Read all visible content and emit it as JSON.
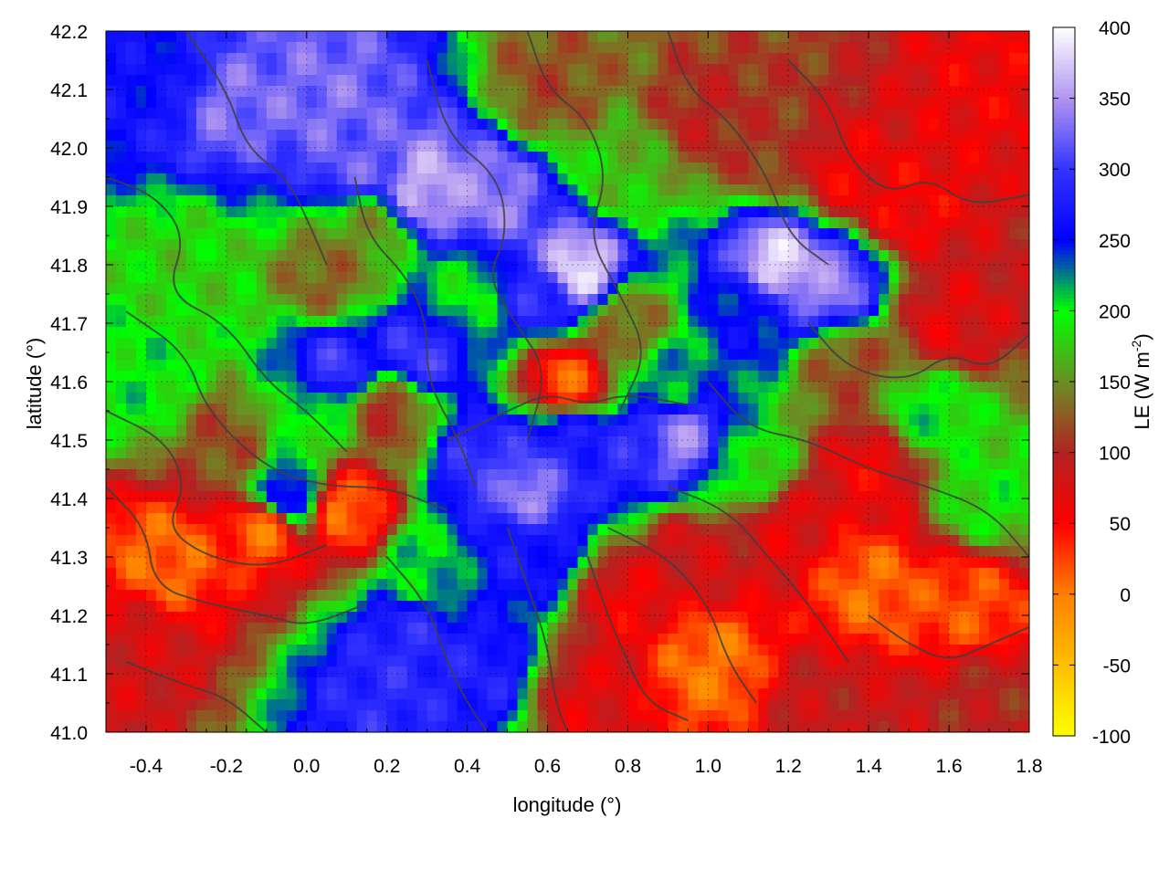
{
  "chart_data": {
    "type": "heatmap",
    "title": "",
    "xlabel": "longitude (°)",
    "ylabel": "latitude (°)",
    "xlim": [
      -0.5,
      1.8
    ],
    "ylim": [
      41.0,
      42.2
    ],
    "x_ticks": [
      -0.4,
      -0.2,
      0.0,
      0.2,
      0.4,
      0.6,
      0.8,
      1.0,
      1.2,
      1.4,
      1.6,
      1.8
    ],
    "x_tick_labels": [
      "-0.4",
      "-0.2",
      "0.0",
      "0.2",
      "0.4",
      "0.6",
      "0.8",
      "1.0",
      "1.2",
      "1.4",
      "1.6",
      "1.8"
    ],
    "y_ticks": [
      41.0,
      41.1,
      41.2,
      41.3,
      41.4,
      41.5,
      41.6,
      41.7,
      41.8,
      41.9,
      42.0,
      42.1,
      42.2
    ],
    "y_tick_labels": [
      "41.0",
      "41.1",
      "41.2",
      "41.3",
      "41.4",
      "41.5",
      "41.6",
      "41.7",
      "41.8",
      "41.9",
      "42.0",
      "42.1",
      "42.2"
    ],
    "colorbar": {
      "label_main": "LE (W m",
      "label_sup": "-2",
      "label_end": ")",
      "range": [
        -100,
        400
      ],
      "ticks": [
        -100,
        -50,
        0,
        50,
        100,
        150,
        200,
        250,
        300,
        350,
        400
      ],
      "tick_labels": [
        "-100",
        "-50",
        "0",
        "50",
        "100",
        "150",
        "200",
        "250",
        "300",
        "350",
        "400"
      ],
      "palette": [
        {
          "value": -100,
          "color": "#ffff00"
        },
        {
          "value": 0,
          "color": "#ff8000"
        },
        {
          "value": 50,
          "color": "#ff0000"
        },
        {
          "value": 100,
          "color": "#b22222"
        },
        {
          "value": 150,
          "color": "#6b8e23"
        },
        {
          "value": 200,
          "color": "#00ff00"
        },
        {
          "value": 250,
          "color": "#0000ff"
        },
        {
          "value": 300,
          "color": "#3333ff"
        },
        {
          "value": 350,
          "color": "#b095f0"
        },
        {
          "value": 400,
          "color": "#ffffff"
        }
      ]
    },
    "grid": true,
    "contour_color": "#404040",
    "field_features": [
      {
        "lon": 0.55,
        "lat": 41.42,
        "le": 340
      },
      {
        "lon": 0.45,
        "lat": 41.46,
        "le": 300
      },
      {
        "lon": 0.65,
        "lat": 41.5,
        "le": 280
      },
      {
        "lon": 0.93,
        "lat": 41.5,
        "le": 340
      },
      {
        "lon": 0.8,
        "lat": 41.48,
        "le": 290
      },
      {
        "lon": 1.18,
        "lat": 41.8,
        "le": 380
      },
      {
        "lon": 1.3,
        "lat": 41.77,
        "le": 340
      },
      {
        "lon": 1.1,
        "lat": 41.72,
        "le": 250
      },
      {
        "lon": 0.68,
        "lat": 41.79,
        "le": 380
      },
      {
        "lon": 0.58,
        "lat": 41.75,
        "le": 290
      },
      {
        "lon": 0.3,
        "lat": 41.93,
        "le": 360
      },
      {
        "lon": 0.45,
        "lat": 41.92,
        "le": 340
      },
      {
        "lon": -0.2,
        "lat": 42.08,
        "le": 330
      },
      {
        "lon": 0.05,
        "lat": 42.08,
        "le": 330
      },
      {
        "lon": 0.12,
        "lat": 41.98,
        "le": 320
      },
      {
        "lon": -0.35,
        "lat": 42.12,
        "le": 260
      },
      {
        "lon": 0.07,
        "lat": 41.62,
        "le": 300
      },
      {
        "lon": 0.28,
        "lat": 41.65,
        "le": 300
      },
      {
        "lon": -0.05,
        "lat": 41.4,
        "le": 270
      },
      {
        "lon": 0.25,
        "lat": 41.15,
        "le": 290
      },
      {
        "lon": 0.2,
        "lat": 41.06,
        "le": 290
      },
      {
        "lon": 0.43,
        "lat": 41.1,
        "le": 280
      },
      {
        "lon": 0.55,
        "lat": 41.3,
        "le": 270
      },
      {
        "lon": 0.3,
        "lat": 41.28,
        "le": 210
      },
      {
        "lon": 0.0,
        "lat": 41.55,
        "le": 200
      },
      {
        "lon": -0.4,
        "lat": 41.6,
        "le": 200
      },
      {
        "lon": -0.3,
        "lat": 41.8,
        "le": 180
      },
      {
        "lon": 0.4,
        "lat": 41.75,
        "le": 200
      },
      {
        "lon": 0.8,
        "lat": 41.95,
        "le": 170
      },
      {
        "lon": 0.9,
        "lat": 41.6,
        "le": 220
      },
      {
        "lon": 1.1,
        "lat": 41.45,
        "le": 190
      },
      {
        "lon": 1.55,
        "lat": 41.55,
        "le": 200
      },
      {
        "lon": 1.7,
        "lat": 41.4,
        "le": 190
      },
      {
        "lon": 0.8,
        "lat": 41.7,
        "le": 130
      },
      {
        "lon": 1.35,
        "lat": 41.62,
        "le": 120
      },
      {
        "lon": 1.0,
        "lat": 42.05,
        "le": 100
      },
      {
        "lon": 0.15,
        "lat": 41.85,
        "le": 150
      },
      {
        "lon": -0.1,
        "lat": 41.35,
        "le": 5
      },
      {
        "lon": -0.35,
        "lat": 41.3,
        "le": 10
      },
      {
        "lon": 0.1,
        "lat": 41.38,
        "le": 10
      },
      {
        "lon": 0.65,
        "lat": 41.6,
        "le": 15
      },
      {
        "lon": 1.0,
        "lat": 41.12,
        "le": 5
      },
      {
        "lon": 1.4,
        "lat": 41.25,
        "le": 10
      },
      {
        "lon": 1.65,
        "lat": 41.22,
        "le": 20
      },
      {
        "lon": 1.5,
        "lat": 41.9,
        "le": 55
      },
      {
        "lon": 1.7,
        "lat": 42.1,
        "le": 60
      },
      {
        "lon": 1.6,
        "lat": 41.7,
        "le": 70
      },
      {
        "lon": 1.4,
        "lat": 41.45,
        "le": 60
      },
      {
        "lon": 1.7,
        "lat": 41.05,
        "le": 100
      },
      {
        "lon": 1.3,
        "lat": 41.05,
        "le": 90
      },
      {
        "lon": 0.95,
        "lat": 41.3,
        "le": 80
      },
      {
        "lon": 1.2,
        "lat": 41.35,
        "le": 70
      },
      {
        "lon": -0.45,
        "lat": 41.15,
        "le": 80
      },
      {
        "lon": 0.7,
        "lat": 41.05,
        "le": 70
      },
      {
        "lon": 0.8,
        "lat": 41.22,
        "le": 60
      },
      {
        "lon": 1.15,
        "lat": 42.0,
        "le": 110
      },
      {
        "lon": 1.35,
        "lat": 41.95,
        "le": 60
      },
      {
        "lon": 0.6,
        "lat": 42.1,
        "le": 120
      },
      {
        "lon": 0.2,
        "lat": 41.55,
        "le": 110
      },
      {
        "lon": -0.2,
        "lat": 41.5,
        "le": 120
      },
      {
        "lon": 0.05,
        "lat": 41.78,
        "le": 130
      }
    ]
  }
}
